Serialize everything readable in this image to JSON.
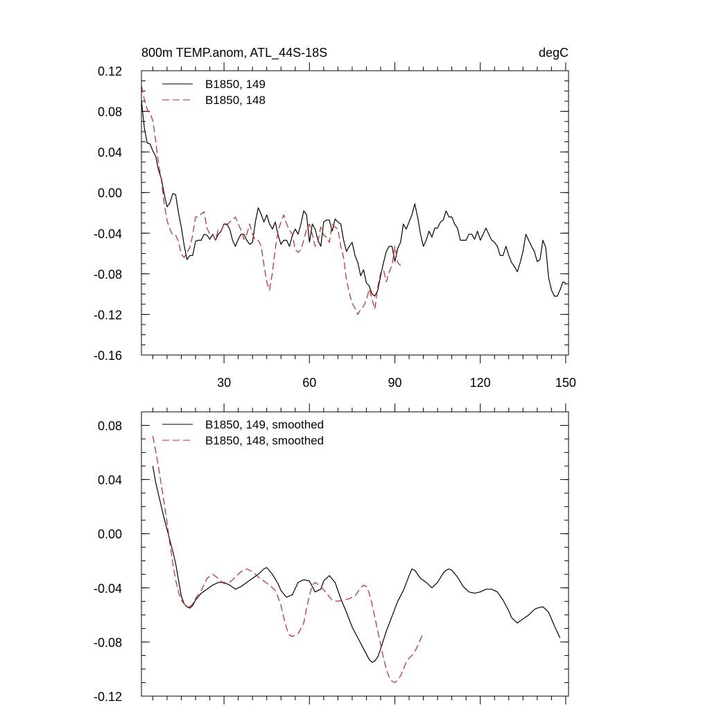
{
  "colors": {
    "series_149": "#000000",
    "series_148": "#e41a1c",
    "axis": "#000000",
    "background": "#ffffff"
  },
  "chart_data": [
    {
      "type": "line",
      "title": "800m TEMP.anom, ATL_44S-18S",
      "units": "degC",
      "xlim": [
        1,
        151
      ],
      "ylim": [
        -0.16,
        0.12
      ],
      "xticks": [
        30,
        60,
        90,
        120,
        150
      ],
      "xtick_labels": [
        "30",
        "60",
        "90",
        "120",
        "150"
      ],
      "yticks": [
        0.12,
        0.08,
        0.04,
        0.0,
        -0.04,
        -0.08,
        -0.12,
        -0.16
      ],
      "ytick_labels": [
        "0.12",
        "0.08",
        "0.04",
        "0.00",
        "-0.04",
        "-0.08",
        "-0.12",
        "-0.16"
      ],
      "legend_position": "top-left",
      "grid": false,
      "series": [
        {
          "name": "B1850, 149",
          "style": "solid",
          "x_start": 1,
          "values": [
            0.091,
            0.064,
            0.049,
            0.048,
            0.041,
            0.036,
            0.022,
            0.014,
            -0.002,
            -0.014,
            -0.01,
            -0.001,
            -0.002,
            -0.02,
            -0.034,
            -0.052,
            -0.066,
            -0.062,
            -0.062,
            -0.048,
            -0.047,
            -0.047,
            -0.041,
            -0.042,
            -0.046,
            -0.041,
            -0.047,
            -0.041,
            -0.038,
            -0.031,
            -0.031,
            -0.036,
            -0.047,
            -0.053,
            -0.046,
            -0.041,
            -0.041,
            -0.047,
            -0.051,
            -0.049,
            -0.029,
            -0.015,
            -0.021,
            -0.029,
            -0.022,
            -0.031,
            -0.036,
            -0.029,
            -0.042,
            -0.051,
            -0.047,
            -0.047,
            -0.053,
            -0.042,
            -0.036,
            -0.041,
            -0.031,
            -0.018,
            -0.022,
            -0.049,
            -0.031,
            -0.036,
            -0.047,
            -0.053,
            -0.029,
            -0.027,
            -0.027,
            -0.038,
            -0.026,
            -0.029,
            -0.031,
            -0.047,
            -0.058,
            -0.053,
            -0.049,
            -0.062,
            -0.069,
            -0.082,
            -0.076,
            -0.089,
            -0.092,
            -0.1,
            -0.102,
            -0.096,
            -0.082,
            -0.069,
            -0.058,
            -0.053,
            -0.053,
            -0.068,
            -0.055,
            -0.049,
            -0.031,
            -0.036,
            -0.029,
            -0.022,
            -0.011,
            -0.024,
            -0.041,
            -0.053,
            -0.047,
            -0.038,
            -0.044,
            -0.035,
            -0.035,
            -0.029,
            -0.027,
            -0.018,
            -0.024,
            -0.024,
            -0.031,
            -0.035,
            -0.047,
            -0.047,
            -0.047,
            -0.041,
            -0.041,
            -0.046,
            -0.038,
            -0.047,
            -0.041,
            -0.035,
            -0.041,
            -0.047,
            -0.049,
            -0.053,
            -0.062,
            -0.062,
            -0.053,
            -0.062,
            -0.069,
            -0.073,
            -0.078,
            -0.069,
            -0.058,
            -0.041,
            -0.047,
            -0.053,
            -0.058,
            -0.068,
            -0.066,
            -0.047,
            -0.054,
            -0.084,
            -0.096,
            -0.102,
            -0.102,
            -0.096,
            -0.088,
            -0.089
          ]
        },
        {
          "name": "B1850, 148",
          "style": "dashed",
          "x_start": 1,
          "values": [
            0.105,
            0.092,
            0.082,
            0.078,
            0.071,
            0.051,
            0.029,
            0.012,
            -0.011,
            -0.028,
            -0.036,
            -0.042,
            -0.042,
            -0.048,
            -0.061,
            -0.064,
            -0.059,
            -0.054,
            -0.042,
            -0.024,
            -0.024,
            -0.021,
            -0.019,
            -0.035,
            -0.041,
            -0.041,
            -0.047,
            -0.036,
            -0.038,
            -0.031,
            -0.032,
            -0.029,
            -0.027,
            -0.024,
            -0.031,
            -0.037,
            -0.046,
            -0.041,
            -0.031,
            -0.041,
            -0.047,
            -0.047,
            -0.052,
            -0.071,
            -0.088,
            -0.096,
            -0.079,
            -0.055,
            -0.038,
            -0.029,
            -0.022,
            -0.031,
            -0.037,
            -0.041,
            -0.056,
            -0.059,
            -0.056,
            -0.047,
            -0.036,
            -0.031,
            -0.041,
            -0.053,
            -0.048,
            -0.034,
            -0.042,
            -0.044,
            -0.049,
            -0.031,
            -0.034,
            -0.036,
            -0.053,
            -0.064,
            -0.086,
            -0.099,
            -0.109,
            -0.114,
            -0.12,
            -0.115,
            -0.112,
            -0.106,
            -0.095,
            -0.105,
            -0.115,
            -0.093,
            -0.079,
            -0.076,
            -0.088,
            -0.078,
            -0.072,
            -0.053,
            -0.069,
            -0.072
          ]
        }
      ]
    },
    {
      "type": "line",
      "title": "",
      "xlim": [
        1,
        151
      ],
      "ylim": [
        -0.12,
        0.09
      ],
      "xticks": [
        30,
        60,
        90,
        120,
        150
      ],
      "yticks": [
        0.08,
        0.04,
        0.0,
        -0.04,
        -0.08,
        -0.12
      ],
      "ytick_labels": [
        "0.08",
        "0.04",
        "0.00",
        "-0.04",
        "-0.08",
        "-0.12"
      ],
      "legend_position": "top-left",
      "grid": false,
      "series": [
        {
          "name": "B1850, 149, smoothed",
          "style": "solid",
          "x": [
            5,
            6,
            7,
            8,
            9,
            10,
            11,
            12,
            13,
            14,
            15,
            16,
            17,
            18,
            19,
            20,
            22,
            24,
            26,
            28,
            30,
            32,
            34,
            36,
            38,
            40,
            42,
            43,
            44,
            45,
            47,
            49,
            50,
            52,
            54,
            56,
            58,
            60,
            62,
            64,
            65,
            67,
            69,
            71,
            73,
            75,
            77,
            79,
            81,
            82,
            83,
            84,
            85,
            87,
            89,
            91,
            93,
            95,
            96,
            97,
            99,
            101,
            103,
            105,
            107,
            108,
            109,
            110,
            112,
            114,
            116,
            118,
            120,
            122,
            124,
            126,
            128,
            130,
            131,
            133,
            135,
            137,
            139,
            140,
            142,
            144,
            146,
            148
          ],
          "values": [
            0.05,
            0.038,
            0.029,
            0.02,
            0.011,
            0.003,
            -0.005,
            -0.013,
            -0.022,
            -0.034,
            -0.046,
            -0.052,
            -0.054,
            -0.055,
            -0.053,
            -0.049,
            -0.044,
            -0.041,
            -0.038,
            -0.036,
            -0.036,
            -0.038,
            -0.041,
            -0.039,
            -0.036,
            -0.033,
            -0.03,
            -0.028,
            -0.026,
            -0.025,
            -0.03,
            -0.037,
            -0.042,
            -0.047,
            -0.045,
            -0.036,
            -0.034,
            -0.035,
            -0.043,
            -0.041,
            -0.035,
            -0.031,
            -0.036,
            -0.048,
            -0.058,
            -0.069,
            -0.077,
            -0.085,
            -0.093,
            -0.095,
            -0.094,
            -0.091,
            -0.085,
            -0.072,
            -0.061,
            -0.05,
            -0.042,
            -0.031,
            -0.026,
            -0.027,
            -0.033,
            -0.036,
            -0.04,
            -0.036,
            -0.029,
            -0.027,
            -0.026,
            -0.027,
            -0.032,
            -0.039,
            -0.043,
            -0.044,
            -0.043,
            -0.041,
            -0.041,
            -0.043,
            -0.049,
            -0.057,
            -0.062,
            -0.066,
            -0.063,
            -0.06,
            -0.056,
            -0.055,
            -0.054,
            -0.058,
            -0.068,
            -0.077
          ]
        },
        {
          "name": "B1850, 148, smoothed",
          "style": "dashed",
          "x": [
            5,
            6,
            7,
            8,
            9,
            10,
            11,
            12,
            13,
            14,
            15,
            16,
            17,
            18,
            19,
            20,
            22,
            24,
            26,
            28,
            30,
            32,
            34,
            36,
            38,
            40,
            42,
            44,
            46,
            48,
            49,
            50,
            51,
            52,
            53,
            54,
            56,
            58,
            59,
            60,
            61,
            62,
            64,
            66,
            68,
            70,
            72,
            74,
            75,
            76,
            77,
            78,
            79,
            80,
            81,
            82,
            83,
            84,
            85,
            86,
            87,
            88,
            89,
            90,
            91,
            92,
            93,
            94,
            95,
            96,
            97,
            98,
            99,
            100
          ],
          "values": [
            0.072,
            0.061,
            0.049,
            0.036,
            0.022,
            0.008,
            -0.008,
            -0.022,
            -0.034,
            -0.043,
            -0.049,
            -0.052,
            -0.054,
            -0.054,
            -0.052,
            -0.048,
            -0.042,
            -0.033,
            -0.03,
            -0.033,
            -0.037,
            -0.036,
            -0.032,
            -0.028,
            -0.026,
            -0.028,
            -0.032,
            -0.035,
            -0.038,
            -0.042,
            -0.047,
            -0.053,
            -0.062,
            -0.07,
            -0.075,
            -0.076,
            -0.074,
            -0.066,
            -0.055,
            -0.046,
            -0.038,
            -0.036,
            -0.039,
            -0.044,
            -0.049,
            -0.05,
            -0.049,
            -0.048,
            -0.047,
            -0.046,
            -0.043,
            -0.04,
            -0.038,
            -0.039,
            -0.044,
            -0.052,
            -0.062,
            -0.072,
            -0.082,
            -0.092,
            -0.1,
            -0.106,
            -0.109,
            -0.11,
            -0.108,
            -0.105,
            -0.1,
            -0.095,
            -0.092,
            -0.09,
            -0.087,
            -0.083,
            -0.078,
            -0.073
          ]
        }
      ]
    }
  ]
}
